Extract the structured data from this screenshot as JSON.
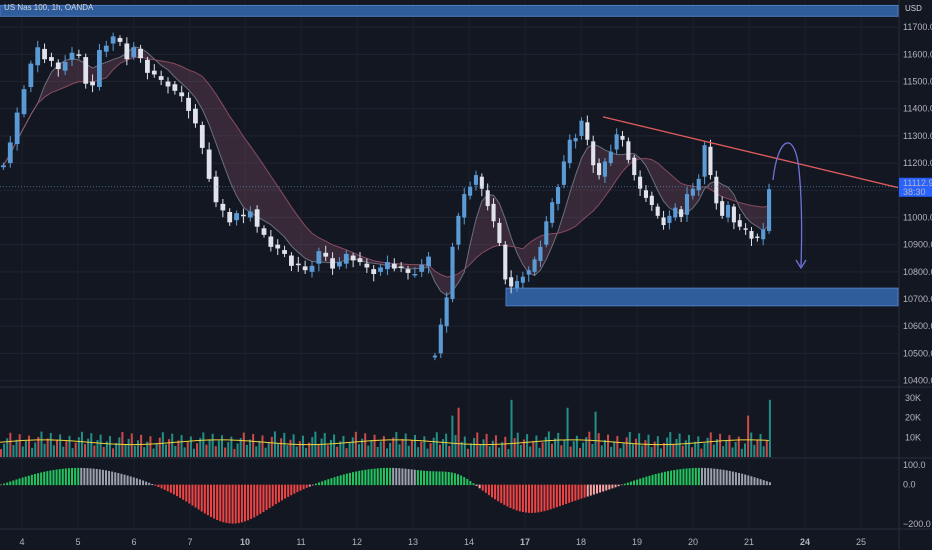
{
  "header": {
    "symbol_title": "US Nas 100, 1h, OANDA",
    "currency": "USD"
  },
  "price_scale": {
    "ticks": [
      "11700.0",
      "11600.0",
      "11500.0",
      "11400.0",
      "11300.0",
      "11200.0",
      "11100.0",
      "11000.0",
      "10900.0",
      "10800.0",
      "10700.0",
      "10600.0",
      "10500.0",
      "10400.0"
    ],
    "last_price": "11112.9",
    "countdown": "38:30"
  },
  "volume_scale": {
    "ticks": [
      "30K",
      "20K",
      "10K"
    ]
  },
  "oscillator_scale": {
    "ticks": [
      "100.0",
      "0.0",
      "−200.0"
    ]
  },
  "time_axis": {
    "ticks": [
      "4",
      "5",
      "6",
      "7",
      "10",
      "11",
      "12",
      "13",
      "14",
      "17",
      "18",
      "19",
      "20",
      "21",
      "24",
      "25"
    ]
  },
  "colors": {
    "background": "#131722",
    "up": "#5b9bd5",
    "down": "#e0e3eb",
    "zone": "#2f5d9b",
    "trendline": "#e05b5b",
    "arrow": "#6f73d9",
    "vol_up": "#26a69a",
    "vol_down": "#ef5350",
    "vol_ma": "#f0d23c",
    "osc_pos_strong": "#22c55e",
    "osc_pos_weak": "#86efac",
    "osc_neg_strong": "#ef4444",
    "osc_neg_weak": "#fca5a5",
    "osc_neutral": "#9ca3af"
  },
  "chart_data": {
    "type": "candlestick",
    "title": "US Nas 100, 1h, OANDA",
    "y_range": [
      10380,
      11800
    ],
    "x_labels": [
      "4",
      "5",
      "6",
      "7",
      "10",
      "11",
      "12",
      "13",
      "14",
      "17",
      "18",
      "19",
      "20",
      "21",
      "24",
      "25"
    ],
    "price_path": [
      [
        11200,
        11270,
        11380,
        11480,
        11560,
        11620,
        11590,
        11570,
        11540,
        11580,
        11600,
        11590,
        11500,
        11480,
        11610,
        11640,
        11660,
        11640,
        11590,
        11620,
        11580,
        11540,
        11520,
        11500,
        11490,
        11460,
        11440,
        11400,
        11340,
        11250,
        11150,
        11050,
        11020,
        10990,
        11010,
        11000,
        11030,
        10960,
        10930,
        10900,
        10880,
        10860,
        10830,
        10820,
        10800,
        10830,
        10870,
        10850,
        10820,
        10830,
        10860,
        10850,
        10830,
        10810,
        10800,
        10810,
        10830,
        10820,
        10810,
        10790,
        10800,
        10820,
        10850
      ],
      [
        10500,
        10600,
        10700,
        10900,
        11000,
        11080,
        11120,
        11150,
        11100,
        11050,
        10980,
        10900,
        10780,
        10740,
        10760,
        10790,
        10800,
        10840,
        10900,
        10980,
        11050,
        11120,
        11200,
        11280,
        11300,
        11350,
        11280,
        11200,
        11150,
        11200,
        11250,
        11300,
        11280,
        11220,
        11150,
        11100,
        11080,
        11040,
        11000,
        10980,
        11000,
        11030,
        11010,
        11080,
        11100,
        11150,
        11260,
        11150,
        11060,
        11000,
        11040,
        10990,
        10960,
        10950,
        10930,
        10920,
        10950,
        11112
      ]
    ],
    "zones": [
      {
        "from": 11740,
        "to": 11780
      },
      {
        "from": 10675,
        "to": 10740
      }
    ],
    "trendline": [
      {
        "x_frac": 0.65,
        "price": 11370
      },
      {
        "x_frac": 1.0,
        "price": 11110
      }
    ],
    "volume_range": [
      0,
      35000
    ],
    "oscillator_range": [
      -220,
      130
    ]
  }
}
